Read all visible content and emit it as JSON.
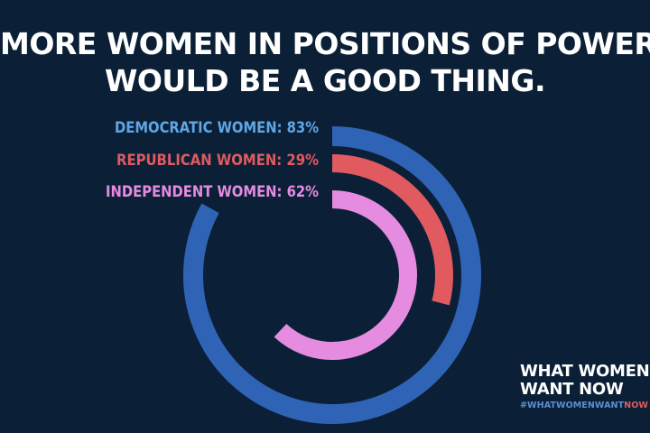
{
  "title_lines": [
    "MORE WOMEN IN POSITIONS OF POWER",
    "WOULD BE A GOOD THING."
  ],
  "brand": {
    "line1": "WHAT WOMEN",
    "line2": "WANT NOW",
    "hashtag_main": "#WHATWOMENWANT",
    "hashtag_accent": "NOW"
  },
  "chart_data": {
    "type": "radial-bar",
    "unit": "%",
    "series": [
      {
        "name": "DEMOCRATIC WOMEN",
        "value": 83,
        "color": "#2f63b5",
        "label_color": "#5fa6e6",
        "label": "DEMOCRATIC WOMEN:  83%"
      },
      {
        "name": "REPUBLICAN WOMEN",
        "value": 29,
        "color": "#e05a60",
        "label_color": "#e05a60",
        "label": "REPUBLICAN WOMEN:  29%"
      },
      {
        "name": "INDEPENDENT WOMEN",
        "value": 62,
        "color": "#e58be0",
        "label_color": "#e58be0",
        "label": "INDEPENDENT WOMEN:  62%"
      }
    ]
  }
}
